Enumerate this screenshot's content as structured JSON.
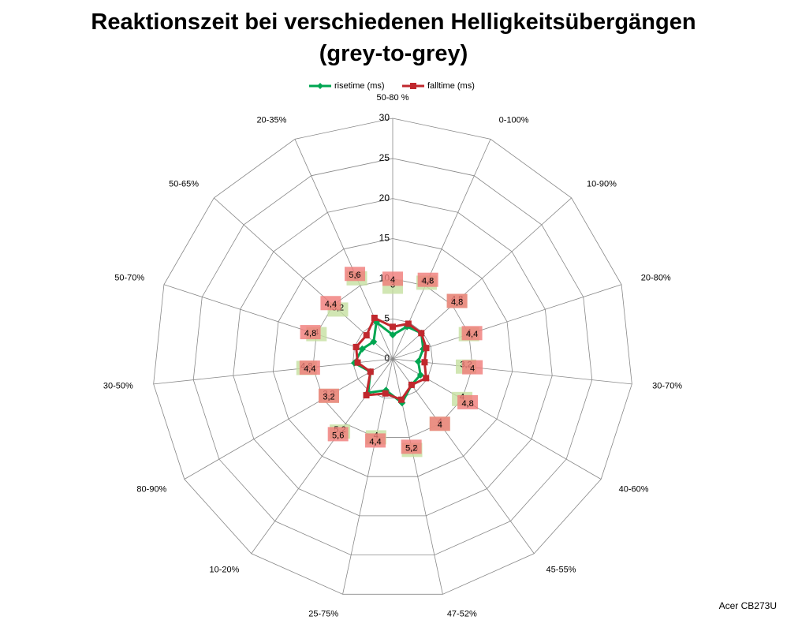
{
  "chart_data": {
    "type": "radar",
    "title": "Reaktionszeit bei verschiedenen Helligkeitsübergängen (grey-to-grey)",
    "footer": "Acer CB273U",
    "categories": [
      "50-80 %",
      "0-100%",
      "10-90%",
      "20-80%",
      "30-70%",
      "40-60%",
      "45-55%",
      "47-52%",
      "25-75%",
      "10-20%",
      "80-90%",
      "30-50%",
      "50-70%",
      "50-65%",
      "20-35%"
    ],
    "series": [
      {
        "name": "risetime (ms)",
        "color": "#00a651",
        "marker": "diamond",
        "label_color": "#c5e0a0",
        "values": [
          3,
          4.4,
          4.8,
          4,
          3.2,
          4,
          4,
          5.6,
          4,
          5.2,
          3.2,
          4.8,
          4,
          3.2,
          5
        ],
        "value_labels": [
          "3",
          "4,4",
          "4,8",
          "4",
          "3,2",
          "4",
          "4",
          "5,6",
          "4",
          "5,2",
          "3,2",
          "4,8",
          "4",
          "3,2",
          "5"
        ]
      },
      {
        "name": "falltime (ms)",
        "color": "#c0282d",
        "marker": "square",
        "label_color": "#f07a78",
        "values": [
          4,
          4.8,
          4.8,
          4.4,
          4,
          4.8,
          4,
          5.2,
          4.4,
          5.6,
          3.2,
          4.4,
          4.8,
          4.4,
          5.6
        ],
        "value_labels": [
          "4",
          "4,8",
          "4,8",
          "4,4",
          "4",
          "4,8",
          "4",
          "5,2",
          "4,4",
          "5,6",
          "3,2",
          "4,4",
          "4,8",
          "4,4",
          "5,6"
        ]
      }
    ],
    "ylim": [
      0,
      30
    ],
    "yticks": [
      0,
      5,
      10,
      15,
      20,
      25,
      30
    ],
    "grid": true,
    "legend": "top"
  }
}
